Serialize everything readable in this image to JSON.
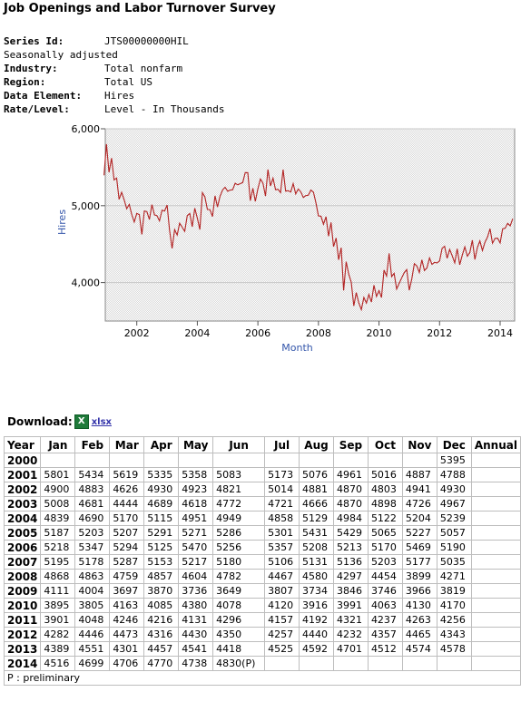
{
  "title": "Job Openings and Labor Turnover Survey",
  "series": {
    "series_id_label": "Series Id:",
    "series_id": "JTS00000000HIL",
    "adjustment": "Seasonally adjusted",
    "industry_label": "Industry:",
    "industry": "Total nonfarm",
    "region_label": "Region:",
    "region": "Total US",
    "data_element_label": "Data Element:",
    "data_element": "Hires",
    "rate_level_label": "Rate/Level:",
    "rate_level": "Level - In Thousands"
  },
  "chart_data": {
    "type": "line",
    "xlabel": "Month",
    "ylabel": "Hires",
    "ylim": [
      3500,
      6000
    ],
    "xlim": [
      2000.96,
      2014.48
    ],
    "yticks": [
      4000,
      5000,
      6000
    ],
    "ytick_labels": [
      "4,000",
      "5,000",
      "6,000"
    ],
    "xticks": [
      2002,
      2004,
      2006,
      2008,
      2010,
      2012,
      2014
    ],
    "xtick_labels": [
      "2002",
      "2004",
      "2006",
      "2008",
      "2010",
      "2012",
      "2014"
    ],
    "grid": true,
    "line_color": "#b22222",
    "source": "monthly values from table below"
  },
  "download": {
    "label": "Download:",
    "icon": "excel-icon",
    "icon_glyph": "X",
    "link": "xlsx"
  },
  "table": {
    "headers": [
      "Year",
      "Jan",
      "Feb",
      "Mar",
      "Apr",
      "May",
      "Jun",
      "Jul",
      "Aug",
      "Sep",
      "Oct",
      "Nov",
      "Dec",
      "Annual"
    ],
    "rows": [
      {
        "year": "2000",
        "values": [
          "",
          "",
          "",
          "",
          "",
          "",
          "",
          "",
          "",
          "",
          "",
          "5395",
          ""
        ]
      },
      {
        "year": "2001",
        "values": [
          "5801",
          "5434",
          "5619",
          "5335",
          "5358",
          "5083",
          "5173",
          "5076",
          "4961",
          "5016",
          "4887",
          "4788",
          ""
        ]
      },
      {
        "year": "2002",
        "values": [
          "4900",
          "4883",
          "4626",
          "4930",
          "4923",
          "4821",
          "5014",
          "4881",
          "4870",
          "4803",
          "4941",
          "4930",
          ""
        ]
      },
      {
        "year": "2003",
        "values": [
          "5008",
          "4681",
          "4444",
          "4689",
          "4618",
          "4772",
          "4721",
          "4666",
          "4870",
          "4898",
          "4726",
          "4967",
          ""
        ]
      },
      {
        "year": "2004",
        "values": [
          "4839",
          "4690",
          "5170",
          "5115",
          "4951",
          "4949",
          "4858",
          "5129",
          "4984",
          "5122",
          "5204",
          "5239",
          ""
        ]
      },
      {
        "year": "2005",
        "values": [
          "5187",
          "5203",
          "5207",
          "5291",
          "5271",
          "5286",
          "5301",
          "5431",
          "5429",
          "5065",
          "5227",
          "5057",
          ""
        ]
      },
      {
        "year": "2006",
        "values": [
          "5218",
          "5347",
          "5294",
          "5125",
          "5470",
          "5256",
          "5357",
          "5208",
          "5213",
          "5170",
          "5469",
          "5190",
          ""
        ]
      },
      {
        "year": "2007",
        "values": [
          "5195",
          "5178",
          "5287",
          "5153",
          "5217",
          "5180",
          "5106",
          "5131",
          "5136",
          "5203",
          "5177",
          "5035",
          ""
        ]
      },
      {
        "year": "2008",
        "values": [
          "4868",
          "4863",
          "4759",
          "4857",
          "4604",
          "4782",
          "4467",
          "4580",
          "4297",
          "4454",
          "3899",
          "4271",
          ""
        ]
      },
      {
        "year": "2009",
        "values": [
          "4111",
          "4004",
          "3697",
          "3870",
          "3736",
          "3649",
          "3807",
          "3734",
          "3846",
          "3746",
          "3966",
          "3819",
          ""
        ]
      },
      {
        "year": "2010",
        "values": [
          "3895",
          "3805",
          "4163",
          "4085",
          "4380",
          "4078",
          "4120",
          "3916",
          "3991",
          "4063",
          "4130",
          "4170",
          ""
        ]
      },
      {
        "year": "2011",
        "values": [
          "3901",
          "4048",
          "4246",
          "4216",
          "4131",
          "4296",
          "4157",
          "4192",
          "4321",
          "4237",
          "4263",
          "4256",
          ""
        ]
      },
      {
        "year": "2012",
        "values": [
          "4282",
          "4446",
          "4473",
          "4316",
          "4430",
          "4350",
          "4257",
          "4440",
          "4232",
          "4357",
          "4465",
          "4343",
          ""
        ]
      },
      {
        "year": "2013",
        "values": [
          "4389",
          "4551",
          "4301",
          "4457",
          "4541",
          "4418",
          "4525",
          "4592",
          "4701",
          "4512",
          "4574",
          "4578",
          ""
        ]
      },
      {
        "year": "2014",
        "values": [
          "4516",
          "4699",
          "4706",
          "4770",
          "4738",
          "4830(P)",
          "",
          "",
          "",
          "",
          "",
          "",
          ""
        ]
      }
    ],
    "footnote": "P : preliminary"
  }
}
